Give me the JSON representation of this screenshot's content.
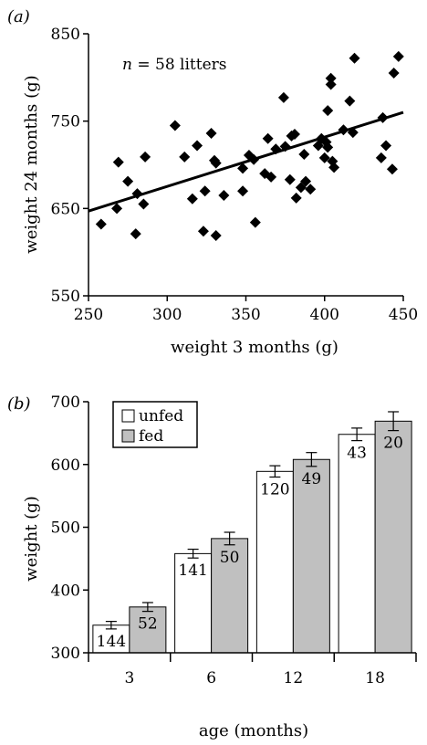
{
  "chart_data": [
    {
      "type": "scatter",
      "panel_label": "(a)",
      "annotation": "n = 58 litters",
      "annotation_italic": "n",
      "annotation_rest": " = 58 litters",
      "xlabel": "weight 3 months (g)",
      "ylabel": "weight 24 months (g)",
      "xlim": [
        250,
        450
      ],
      "ylim": [
        550,
        850
      ],
      "xticks": [
        250,
        300,
        350,
        400,
        450
      ],
      "yticks": [
        550,
        650,
        750,
        850
      ],
      "trendline": {
        "x": [
          250,
          450
        ],
        "y": [
          647,
          760
        ]
      },
      "points": [
        [
          258,
          632
        ],
        [
          268,
          650
        ],
        [
          269,
          703
        ],
        [
          275,
          681
        ],
        [
          280,
          621
        ],
        [
          281,
          667
        ],
        [
          285,
          655
        ],
        [
          286,
          709
        ],
        [
          305,
          745
        ],
        [
          311,
          709
        ],
        [
          316,
          661
        ],
        [
          319,
          722
        ],
        [
          323,
          624
        ],
        [
          324,
          670
        ],
        [
          328,
          736
        ],
        [
          330,
          705
        ],
        [
          331,
          702
        ],
        [
          331,
          619
        ],
        [
          336,
          665
        ],
        [
          348,
          670
        ],
        [
          348,
          696
        ],
        [
          352,
          711
        ],
        [
          355,
          706
        ],
        [
          356,
          634
        ],
        [
          362,
          690
        ],
        [
          364,
          730
        ],
        [
          366,
          686
        ],
        [
          369,
          718
        ],
        [
          374,
          777
        ],
        [
          375,
          721
        ],
        [
          378,
          683
        ],
        [
          379,
          733
        ],
        [
          381,
          735
        ],
        [
          382,
          662
        ],
        [
          385,
          674
        ],
        [
          387,
          712
        ],
        [
          388,
          681
        ],
        [
          391,
          672
        ],
        [
          396,
          722
        ],
        [
          398,
          730
        ],
        [
          400,
          708
        ],
        [
          401,
          726
        ],
        [
          402,
          762
        ],
        [
          402,
          720
        ],
        [
          404,
          799
        ],
        [
          404,
          792
        ],
        [
          405,
          704
        ],
        [
          406,
          697
        ],
        [
          412,
          740
        ],
        [
          416,
          773
        ],
        [
          418,
          737
        ],
        [
          419,
          822
        ],
        [
          436,
          708
        ],
        [
          437,
          754
        ],
        [
          439,
          722
        ],
        [
          443,
          695
        ],
        [
          444,
          805
        ],
        [
          447,
          824
        ]
      ]
    },
    {
      "type": "bar",
      "panel_label": "(b)",
      "categories": [
        "3",
        "6",
        "12",
        "18"
      ],
      "xlabel": "age (months)",
      "ylabel": "weight (g)",
      "ylim": [
        300,
        700
      ],
      "yticks": [
        300,
        400,
        500,
        600,
        700
      ],
      "legend_position": "top-left",
      "series": [
        {
          "name": "unfed",
          "color": "#ffffff",
          "values": [
            344,
            458,
            589,
            648
          ],
          "errors": [
            6,
            7,
            9,
            10
          ],
          "counts": [
            "144",
            "141",
            "120",
            "43"
          ]
        },
        {
          "name": "fed",
          "color": "#c0c0c0",
          "values": [
            373,
            482,
            608,
            669
          ],
          "errors": [
            7,
            10,
            11,
            15
          ],
          "counts": [
            "52",
            "50",
            "49",
            "20"
          ]
        }
      ]
    }
  ]
}
